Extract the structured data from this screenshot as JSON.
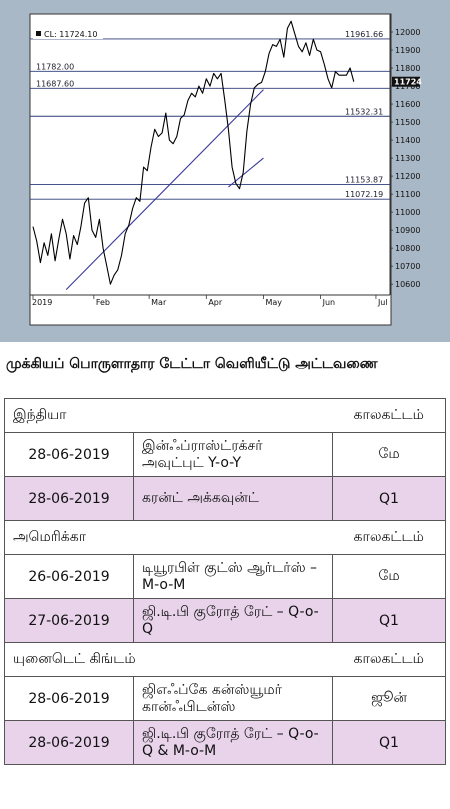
{
  "chart_data": {
    "type": "line",
    "title": "",
    "legend_text": "CL: 11724.10",
    "x_tick_labels": [
      "2019",
      "Feb",
      "Mar",
      "Apr",
      "May",
      "Jun",
      "Jul"
    ],
    "y_ticks": [
      10600,
      10700,
      10800,
      10900,
      11000,
      11100,
      11200,
      11300,
      11400,
      11500,
      11600,
      11700,
      11800,
      11900,
      12000
    ],
    "ylim": [
      10540,
      12100
    ],
    "last_price_label": "11724",
    "levels": [
      {
        "label": "11961.66",
        "value": 11961.66
      },
      {
        "label": "11782.00",
        "value": 11782.0
      },
      {
        "label": "11687.60",
        "value": 11687.6
      },
      {
        "label": "11532.31",
        "value": 11532.31
      },
      {
        "label": "11153.87",
        "value": 11153.87
      },
      {
        "label": "11072.19",
        "value": 11072.19
      }
    ],
    "series": [
      {
        "x": [
          0,
          2,
          4,
          6,
          8,
          10,
          12,
          14,
          16,
          18,
          20,
          22,
          24,
          26,
          28,
          30,
          32,
          34,
          36,
          38,
          40,
          42,
          44,
          46,
          48,
          50,
          52,
          54,
          56,
          58,
          60,
          62,
          64,
          66,
          68,
          70,
          72,
          74,
          76,
          78,
          80,
          82,
          84,
          86,
          88,
          90,
          92,
          94,
          96,
          98,
          100,
          102,
          104,
          106,
          108,
          110,
          112,
          114,
          116,
          118,
          120,
          122,
          124,
          126,
          128,
          130,
          132,
          134,
          136,
          138,
          140,
          142,
          144,
          146,
          148,
          150,
          152,
          154,
          156,
          158,
          160,
          162,
          164,
          166,
          168,
          170,
          172,
          174
        ],
        "y": [
          10920,
          10840,
          10720,
          10830,
          10760,
          10880,
          10730,
          10850,
          10960,
          10880,
          10740,
          10870,
          10820,
          10920,
          11050,
          11080,
          10900,
          10860,
          10960,
          10800,
          10700,
          10600,
          10650,
          10680,
          10760,
          10880,
          10930,
          11020,
          11080,
          11060,
          11250,
          11230,
          11360,
          11460,
          11420,
          11440,
          11550,
          11400,
          11380,
          11420,
          11520,
          11540,
          11620,
          11660,
          11640,
          11700,
          11660,
          11740,
          11700,
          11770,
          11740,
          11770,
          11620,
          11460,
          11250,
          11160,
          11130,
          11220,
          11450,
          11600,
          11690,
          11710,
          11720,
          11780,
          11880,
          11930,
          11920,
          11960,
          11860,
          12020,
          12060,
          11990,
          11920,
          11890,
          11940,
          11870,
          11960,
          11900,
          11890,
          11820,
          11740,
          11690,
          11780,
          11760,
          11760,
          11760,
          11800,
          11724
        ]
      }
    ],
    "trendlines": [
      {
        "x": [
          18,
          125
        ],
        "y": [
          10570,
          11680
        ]
      },
      {
        "x": [
          106,
          125
        ],
        "y": [
          11140,
          11300
        ]
      }
    ]
  },
  "table": {
    "title": "முக்கியப் பொருளாதார டேட்டா வெளியீட்டு அட்டவணை",
    "sections": [
      {
        "name": "இந்தியா",
        "period_header": "காலகட்டம்",
        "rows": [
          {
            "date": "28-06-2019",
            "indicator": "இன்ஃப்ராஸ்ட்ரக்சர் அவுட்புட் Y-o-Y",
            "period": "மே"
          },
          {
            "date": "28-06-2019",
            "indicator": "கரன்ட் அக்கவுன்ட்",
            "period": "Q1"
          }
        ]
      },
      {
        "name": "அமெரிக்கா",
        "period_header": "காலகட்டம்",
        "rows": [
          {
            "date": "26-06-2019",
            "indicator": "டியூரபிள் குட்ஸ் ஆர்டர்ஸ் – M-o-M",
            "period": "மே"
          },
          {
            "date": "27-06-2019",
            "indicator": "ஜி.டி.பி குரோத் ரேட் – Q-o-Q",
            "period": "Q1"
          }
        ]
      },
      {
        "name": "யுனைடெட் கிங்டம்",
        "period_header": "காலகட்டம்",
        "rows": [
          {
            "date": "28-06-2019",
            "indicator": "ஜிஎஃப்கே கன்ஸ்யூமர் கான்ஃபிடன்ஸ்",
            "period": "ஜூன்"
          },
          {
            "date": "28-06-2019",
            "indicator": "ஜி.டி.பி குரோத் ரேட் – Q-o-Q & M-o-M",
            "period": "Q1"
          }
        ]
      }
    ]
  }
}
